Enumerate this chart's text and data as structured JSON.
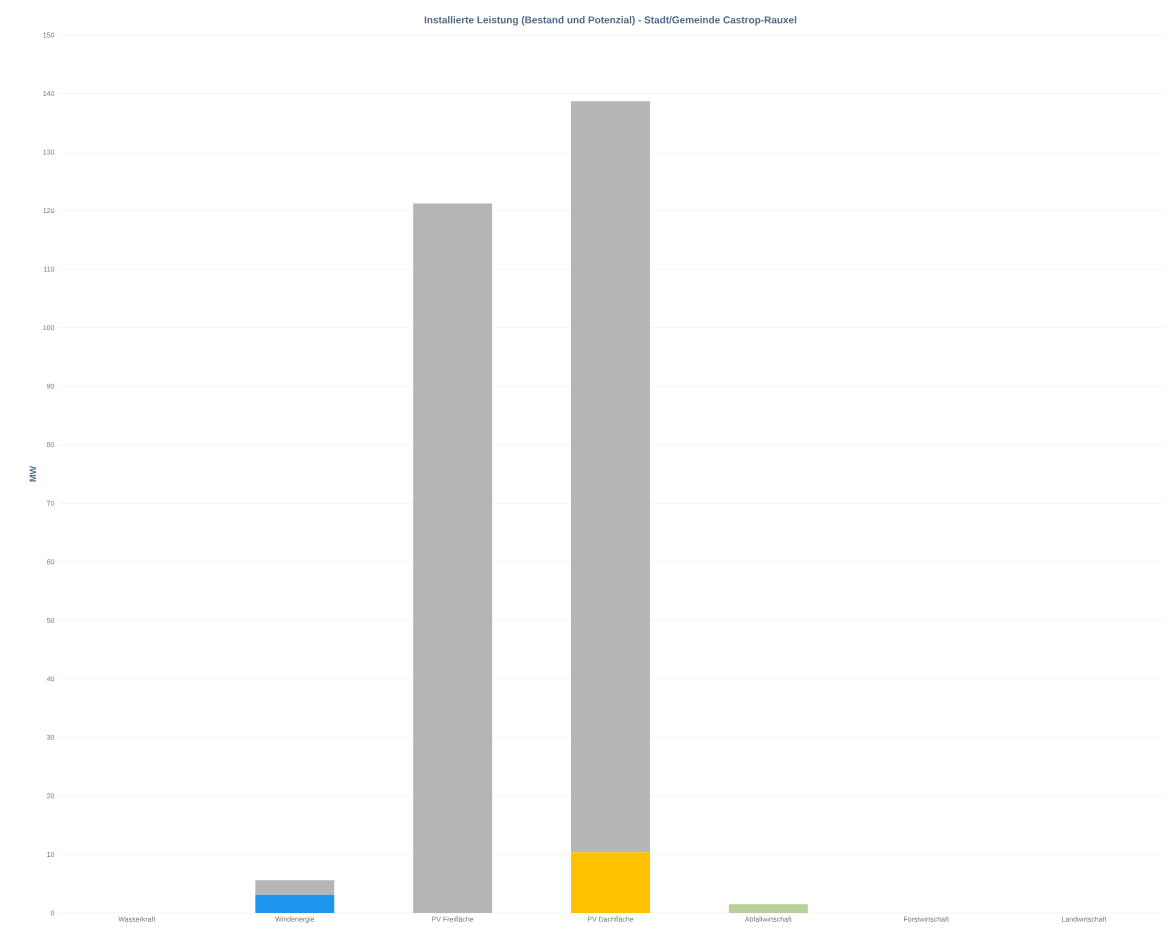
{
  "chart_data": {
    "type": "bar",
    "title": "Installierte Leistung (Bestand und Potenzial) - Stadt/Gemeinde Castrop-Rauxel",
    "ylabel": "MW",
    "categories": [
      "Wasserkraft",
      "Windenergie",
      "PV Freifläche",
      "PV Dachfläche",
      "Abfallwirtschaft",
      "Forstwirtschaft",
      "Landwirtschaft"
    ],
    "stacked": true,
    "series": [
      {
        "colors": [
          "#5b9bd5",
          "#1e96f0",
          "#ffc000",
          "#ffc000",
          "#b9cf9a",
          "#8fbc8f",
          "#a9d08e"
        ],
        "values": [
          0,
          3.1,
          0,
          10.4,
          1.5,
          0,
          0
        ]
      },
      {
        "color": "#b5b5b5",
        "values": [
          0,
          2.5,
          121.2,
          128.3,
          0,
          0,
          0
        ]
      }
    ],
    "ylim": [
      0,
      150
    ],
    "yticks": [
      0,
      10,
      20,
      30,
      40,
      50,
      60,
      70,
      80,
      90,
      100,
      110,
      120,
      130,
      140,
      150
    ],
    "grid": "y"
  }
}
